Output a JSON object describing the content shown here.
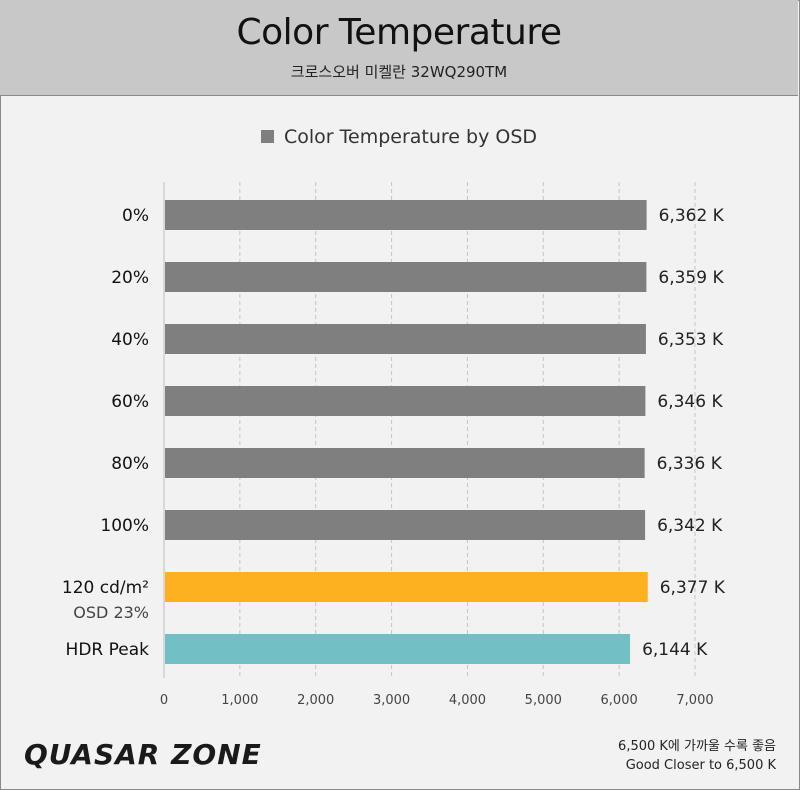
{
  "header": {
    "title": "Color Temperature",
    "subtitle": "크로스오버 미켈란 32WQ290TM"
  },
  "legend": {
    "label": "Color Temperature by OSD"
  },
  "chart_data": {
    "type": "bar",
    "orientation": "horizontal",
    "categories": [
      "0%",
      "20%",
      "40%",
      "60%",
      "80%",
      "100%",
      "120 cd/m²",
      "HDR Peak"
    ],
    "category_sublabels": [
      "",
      "",
      "",
      "",
      "",
      "",
      "OSD 23%",
      ""
    ],
    "values": [
      6362,
      6359,
      6353,
      6346,
      6336,
      6342,
      6377,
      6144
    ],
    "value_labels": [
      "6,362 K",
      "6,359 K",
      "6,353 K",
      "6,346 K",
      "6,336 K",
      "6,342 K",
      "6,377 K",
      "6,144 K"
    ],
    "bar_colors": [
      "#7f7f7f",
      "#7f7f7f",
      "#7f7f7f",
      "#7f7f7f",
      "#7f7f7f",
      "#7f7f7f",
      "#fdb020",
      "#72bfc6"
    ],
    "xlim": [
      0,
      7000
    ],
    "xticks": [
      0,
      1000,
      2000,
      3000,
      4000,
      5000,
      6000,
      7000
    ],
    "xtick_labels": [
      "0",
      "1,000",
      "2,000",
      "3,000",
      "4,000",
      "5,000",
      "6,000",
      "7,000"
    ],
    "grid": "vertical dashed",
    "legend_position": "top-center",
    "title": "Color Temperature by OSD"
  },
  "footer": {
    "logo": "QUASAR ZONE",
    "note_line1": "6,500 K에 가까울 수록 좋음",
    "note_line2": "Good Closer to 6,500 K"
  }
}
